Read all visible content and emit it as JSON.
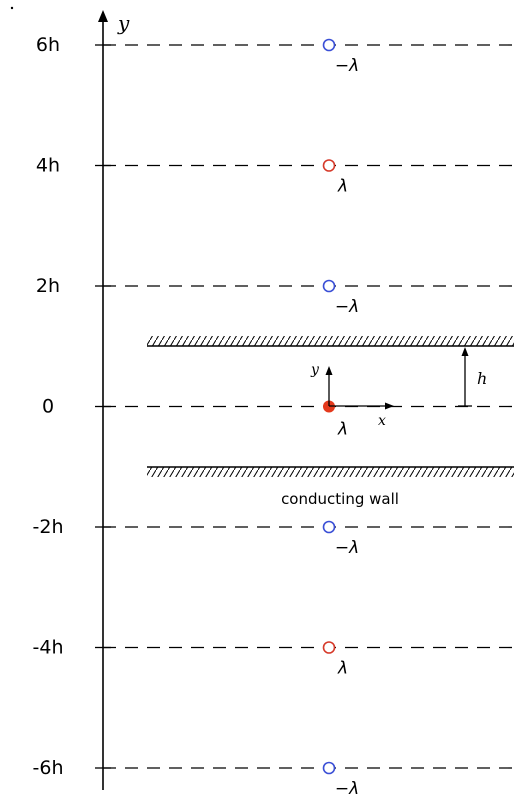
{
  "axis": {
    "y_label": "y"
  },
  "levels": [
    {
      "label": "6h",
      "charge": "−λ",
      "charge_type": "negative"
    },
    {
      "label": "4h",
      "charge": "λ",
      "charge_type": "positive"
    },
    {
      "label": "2h",
      "charge": "−λ",
      "charge_type": "negative"
    },
    {
      "label": "0",
      "charge": "λ",
      "charge_type": "real"
    },
    {
      "label": "-2h",
      "charge": "−λ",
      "charge_type": "negative"
    },
    {
      "label": "-4h",
      "charge": "λ",
      "charge_type": "positive"
    },
    {
      "label": "-6h",
      "charge": "−λ",
      "charge_type": "negative"
    }
  ],
  "wall": {
    "label": "conducting wall"
  },
  "local_axes": {
    "x_label": "x",
    "y_label": "y"
  },
  "height_marker": {
    "label": "h"
  },
  "colors": {
    "negative_image": "#3a4fd6",
    "positive_image": "#d63a2a",
    "real_charge": "#e4391c",
    "line": "#000000"
  }
}
